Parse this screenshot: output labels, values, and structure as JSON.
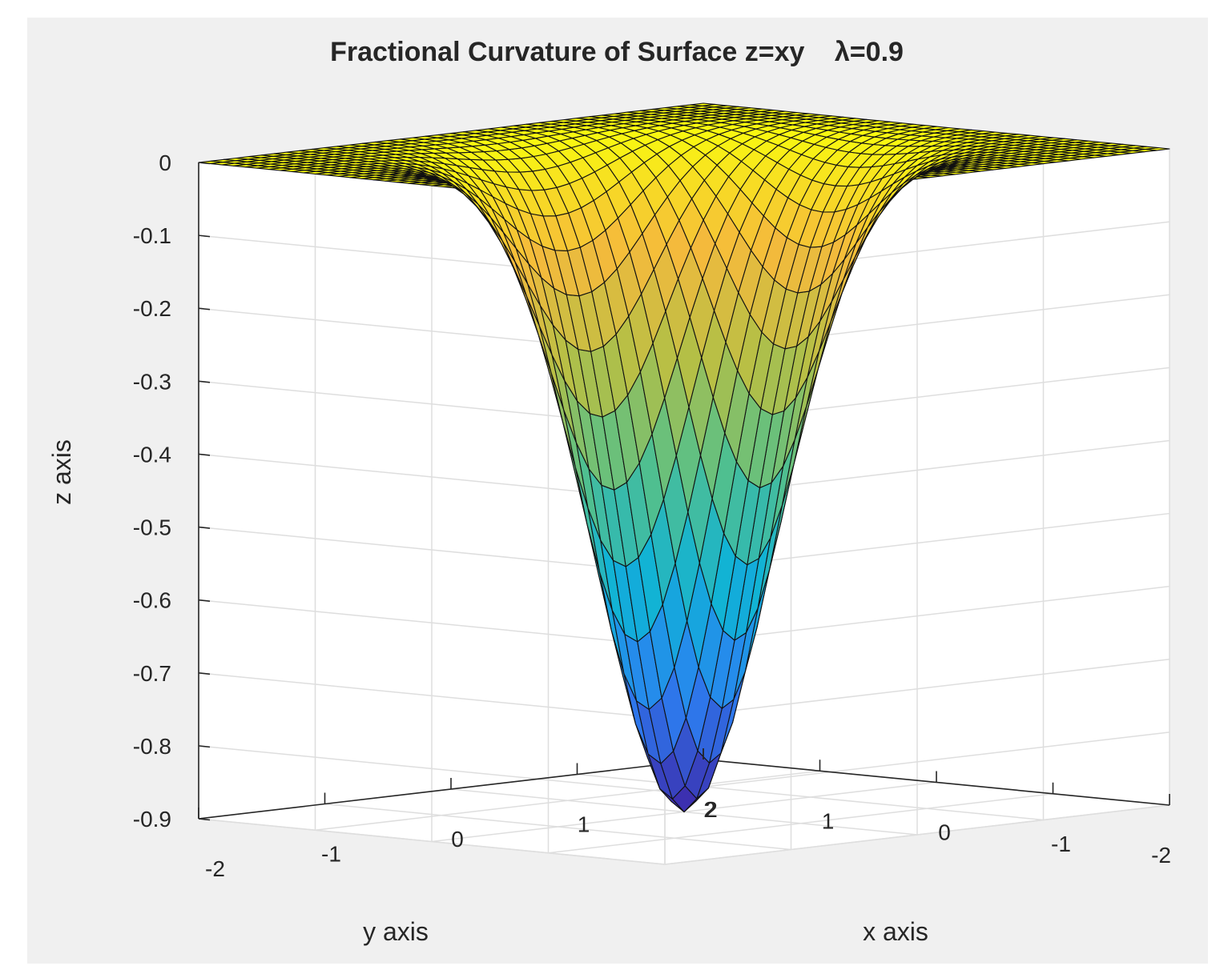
{
  "chart_data": {
    "type": "surface",
    "title": "Fractional Curvature of Surface z=xy",
    "title_param": "λ=0.9",
    "xlabel": "x axis",
    "ylabel": "y axis",
    "zlabel": "z axis",
    "xlim": [
      -2,
      2
    ],
    "ylim": [
      -2,
      2
    ],
    "zlim": [
      -0.9,
      0
    ],
    "x_ticks": [
      "-2",
      "-1",
      "0",
      "1",
      "2"
    ],
    "y_ticks": [
      "-2",
      "-1",
      "0",
      "1",
      "2"
    ],
    "z_ticks": [
      "0",
      "-0.1",
      "-0.2",
      "-0.3",
      "-0.4",
      "-0.5",
      "-0.6",
      "-0.7",
      "-0.8",
      "-0.9"
    ],
    "surface": {
      "min_value": -0.9,
      "min_location": [
        0,
        0
      ],
      "max_value": 0,
      "grid_lines": 41,
      "grid": true,
      "colormap": [
        "#3e26a8",
        "#2c7ff2",
        "#10b2d7",
        "#55c08a",
        "#b4bf46",
        "#f5ba3c",
        "#f9fb0e"
      ]
    }
  }
}
